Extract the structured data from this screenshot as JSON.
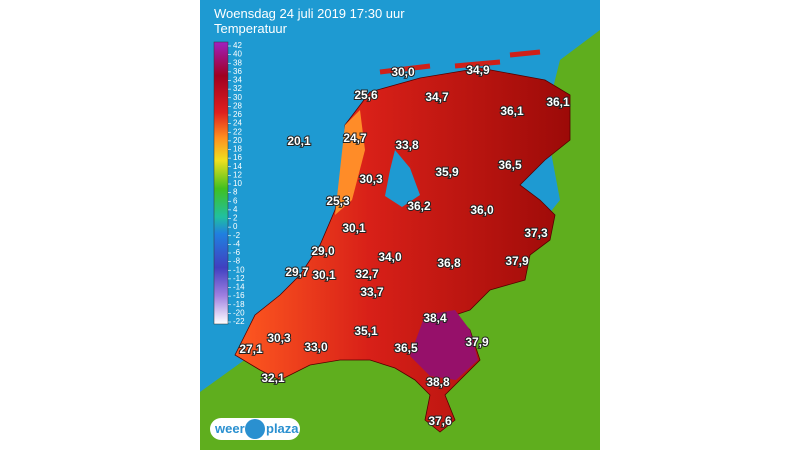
{
  "header": {
    "title": "Woensdag 24 juli 2019 17:30 uur",
    "subtitle": "Temperatuur"
  },
  "legend": {
    "ticks": [
      42,
      40,
      38,
      36,
      34,
      32,
      30,
      28,
      26,
      24,
      22,
      20,
      18,
      16,
      14,
      12,
      10,
      8,
      6,
      4,
      2,
      0,
      -2,
      -4,
      -6,
      -8,
      -10,
      -12,
      -14,
      -16,
      -18,
      -20,
      -22
    ]
  },
  "stations": [
    "30,0",
    "34,9",
    "25,6",
    "34,7",
    "36,1",
    "36,1",
    "20,1",
    "24,7",
    "33,8",
    "30,3",
    "35,9",
    "36,5",
    "25,3",
    "36,2",
    "36,0",
    "30,1",
    "37,3",
    "29,0",
    "34,0",
    "36,8",
    "37,9",
    "29,7",
    "30,1",
    "32,7",
    "33,7",
    "38,4",
    "35,1",
    "30,3",
    "27,1",
    "33,0",
    "36,5",
    "37,9",
    "38,8",
    "32,1",
    "37,6"
  ],
  "logo": {
    "left": "weer",
    "right": "plaza"
  }
}
